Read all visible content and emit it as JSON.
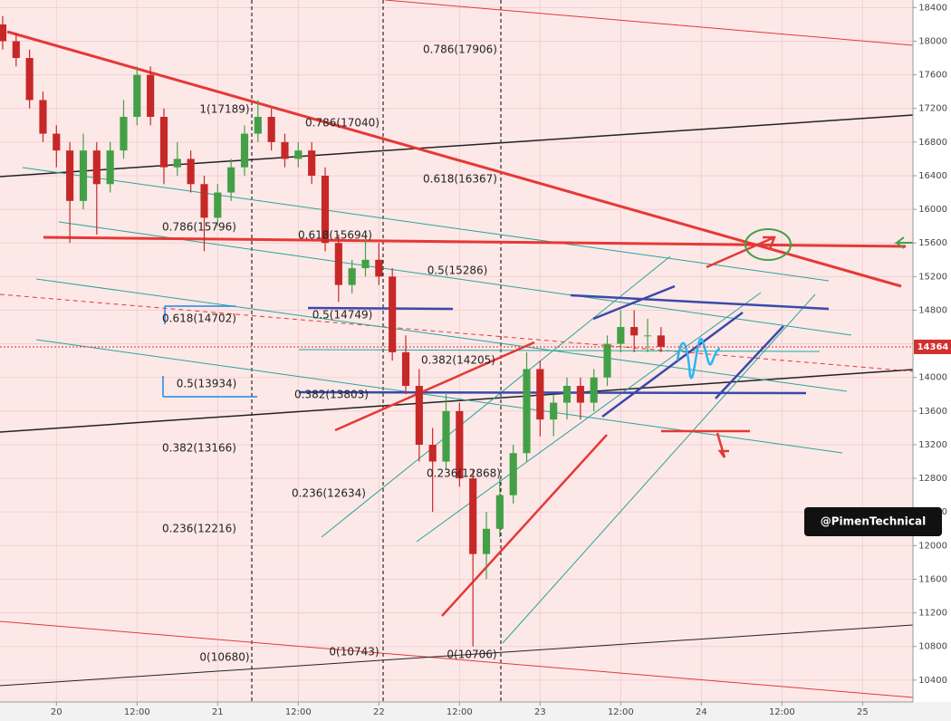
{
  "chart_data": {
    "type": "candlestick",
    "x": [
      -8,
      -6,
      -4,
      -2,
      0,
      2,
      4,
      6,
      8,
      10,
      12,
      14,
      16,
      18,
      20,
      22,
      24,
      26,
      28,
      30,
      32,
      34,
      36,
      38,
      40,
      42,
      44,
      46,
      48,
      50,
      52,
      54,
      56,
      58,
      60,
      62,
      64,
      66,
      68,
      70,
      72,
      74,
      76,
      78,
      80,
      82,
      84,
      86,
      88,
      90
    ],
    "open": [
      18200,
      18000,
      17800,
      17300,
      16900,
      16700,
      16100,
      16700,
      16300,
      16700,
      17100,
      17600,
      17100,
      16500,
      16600,
      16300,
      15900,
      16200,
      16500,
      16900,
      17100,
      16800,
      16600,
      16700,
      16400,
      15600,
      15100,
      15300,
      15400,
      15200,
      14300,
      13900,
      13200,
      13000,
      13600,
      12800,
      11900,
      12200,
      12600,
      13100,
      14100,
      13500,
      13700,
      13900,
      13700,
      14000,
      14400,
      14600,
      14500,
      14500
    ],
    "high": [
      18300,
      18100,
      17900,
      17400,
      17000,
      16800,
      16900,
      16800,
      16800,
      17300,
      17700,
      17700,
      17200,
      16800,
      16700,
      16400,
      16300,
      16600,
      17000,
      17300,
      17200,
      16900,
      16800,
      16800,
      16500,
      15700,
      15400,
      15700,
      15600,
      15300,
      14500,
      14100,
      13400,
      13800,
      13700,
      12900,
      12400,
      12800,
      13200,
      14300,
      14200,
      13800,
      14000,
      14000,
      14100,
      14500,
      14800,
      14800,
      14700,
      14600
    ],
    "low": [
      17900,
      17700,
      17200,
      16800,
      16500,
      15600,
      16000,
      15700,
      16200,
      16600,
      17000,
      17000,
      16300,
      16400,
      16200,
      15500,
      15800,
      16100,
      16400,
      16800,
      16700,
      16500,
      16500,
      16300,
      15500,
      14900,
      15000,
      15200,
      15100,
      14200,
      13800,
      13000,
      12400,
      12900,
      12700,
      10800,
      11600,
      12100,
      12500,
      13000,
      13300,
      13300,
      13500,
      13500,
      13600,
      13900,
      14300,
      14300,
      14300,
      14300
    ],
    "close": [
      18000,
      17800,
      17300,
      16900,
      16700,
      16100,
      16700,
      16300,
      16700,
      17100,
      17600,
      17100,
      16500,
      16600,
      16300,
      15900,
      16200,
      16500,
      16900,
      17100,
      16800,
      16600,
      16700,
      16400,
      15600,
      15100,
      15300,
      15400,
      15200,
      14300,
      13900,
      13200,
      13000,
      13600,
      12800,
      11900,
      12200,
      12600,
      13100,
      14100,
      13500,
      13700,
      13900,
      13700,
      14000,
      14400,
      14600,
      14500,
      14500,
      14364
    ],
    "up_color": "#43a047",
    "down_color": "#c62828",
    "last_price": 14364,
    "xlim": [
      -8.4,
      127.5
    ],
    "xticks": [
      {
        "value": 0,
        "label": "20"
      },
      {
        "value": 12,
        "label": "12:00"
      },
      {
        "value": 24,
        "label": "21"
      },
      {
        "value": 36,
        "label": "12:00"
      },
      {
        "value": 48,
        "label": "22"
      },
      {
        "value": 60,
        "label": "12:00"
      },
      {
        "value": 72,
        "label": "23"
      },
      {
        "value": 84,
        "label": "12:00"
      },
      {
        "value": 96,
        "label": "24"
      },
      {
        "value": 108,
        "label": "12:00"
      },
      {
        "value": 120,
        "label": "25"
      }
    ],
    "ylim": [
      10140,
      18490
    ],
    "yticks": [
      10400,
      10800,
      11200,
      11600,
      12000,
      12400,
      12800,
      13200,
      13600,
      14000,
      14400,
      14800,
      15200,
      15600,
      16000,
      16400,
      16800,
      17200,
      17600,
      18000,
      18400
    ],
    "grid": true,
    "annotations": [
      "0.786(17906)",
      "1(17189)",
      "0.786(17040)",
      "0.618(16367)",
      "0.786(15796)",
      "0.618(15694)",
      "0.5(15286)",
      "0.5(14749)",
      "0.618(14702)",
      "0.382(14205)",
      "0.5(13934)",
      "0.382(13803)",
      "0.382(13166)",
      "0.236(12868)",
      "0.236(12634)",
      "0.236(12216)",
      "0(10680)",
      "0(10743)",
      "0(10706)"
    ],
    "watermark": "@PimenTechnical"
  }
}
